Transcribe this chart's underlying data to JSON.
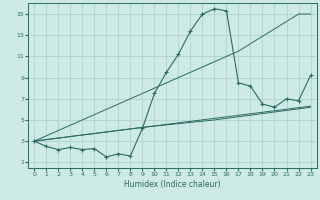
{
  "xlabel": "Humidex (Indice chaleur)",
  "xlim": [
    -0.5,
    23.5
  ],
  "ylim": [
    0.5,
    16
  ],
  "xticks": [
    0,
    1,
    2,
    3,
    4,
    5,
    6,
    7,
    8,
    9,
    10,
    11,
    12,
    13,
    14,
    15,
    16,
    17,
    18,
    19,
    20,
    21,
    22,
    23
  ],
  "yticks": [
    1,
    3,
    5,
    7,
    9,
    11,
    13,
    15
  ],
  "bg_color": "#ceeae6",
  "grid_color": "#a8ceca",
  "line_color": "#2a6b60",
  "curve1_x": [
    0,
    1,
    2,
    3,
    4,
    5,
    6,
    7,
    8,
    9,
    10,
    11,
    12,
    13,
    14,
    15,
    16,
    17,
    18,
    19,
    20,
    21,
    22,
    23
  ],
  "curve1_y": [
    3.0,
    2.5,
    2.2,
    2.4,
    2.2,
    2.3,
    1.5,
    1.8,
    1.6,
    4.2,
    7.5,
    9.5,
    11.2,
    13.4,
    15.0,
    15.5,
    15.3,
    8.5,
    8.2,
    6.5,
    6.2,
    7.0,
    6.8,
    9.2
  ],
  "curve2_x": [
    0,
    23
  ],
  "curve2_y": [
    3.0,
    6.3
  ],
  "curve3_x": [
    0,
    9,
    15,
    23
  ],
  "curve3_y": [
    3.0,
    4.3,
    5.0,
    6.2
  ],
  "curve4_x": [
    0,
    17,
    22,
    23
  ],
  "curve4_y": [
    3.0,
    11.5,
    15.0,
    15.0
  ]
}
